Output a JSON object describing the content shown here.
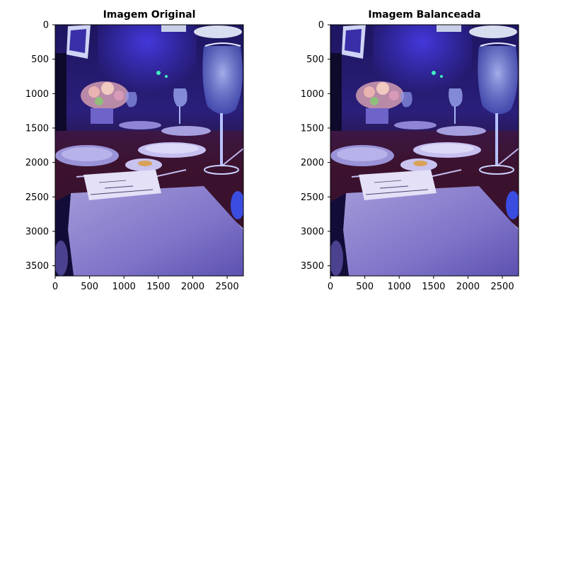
{
  "chart_data": [
    {
      "type": "image",
      "title": "Imagem Original",
      "xlim": [
        0,
        2736
      ],
      "ylim": [
        3648,
        0
      ],
      "xticks": [
        0,
        500,
        1000,
        1500,
        2000,
        2500
      ],
      "yticks": [
        0,
        500,
        1000,
        1500,
        2000,
        2500,
        3000,
        3500
      ],
      "image_description": "Dim banquet dinner table lit with strong blue light: tall wine glass with water at right, plates, cutlery, flower centerpiece and a printed menu card on a folded napkin in the foreground",
      "menu_card_text": [
        "MENU",
        "Assorted bread rolls",
        "Caesar style salad with grilled eggs"
      ],
      "palette": {
        "blue": "#3b2fb8",
        "dark": "#120d38",
        "napkin": "#8f86cf",
        "red_tablecloth": "#4a1530",
        "lamp": "#d8ddf0"
      }
    },
    {
      "type": "image",
      "title": "Imagem Balanceada",
      "xlim": [
        0,
        2736
      ],
      "ylim": [
        3648,
        0
      ],
      "xticks": [
        0,
        500,
        1000,
        1500,
        2000,
        2500
      ],
      "yticks": [
        0,
        500,
        1000,
        1500,
        2000,
        2500,
        3000,
        3500
      ],
      "image_description": "Same banquet table photo after balancing, visually nearly identical",
      "menu_card_text": [
        "MENU",
        "Assorted bread rolls",
        "Caesar style salad with grilled eggs"
      ],
      "palette": {
        "blue": "#3b30ba",
        "dark": "#130e3a",
        "napkin": "#928ad2",
        "red_tablecloth": "#4c1632",
        "lamp": "#dadff2"
      }
    }
  ]
}
